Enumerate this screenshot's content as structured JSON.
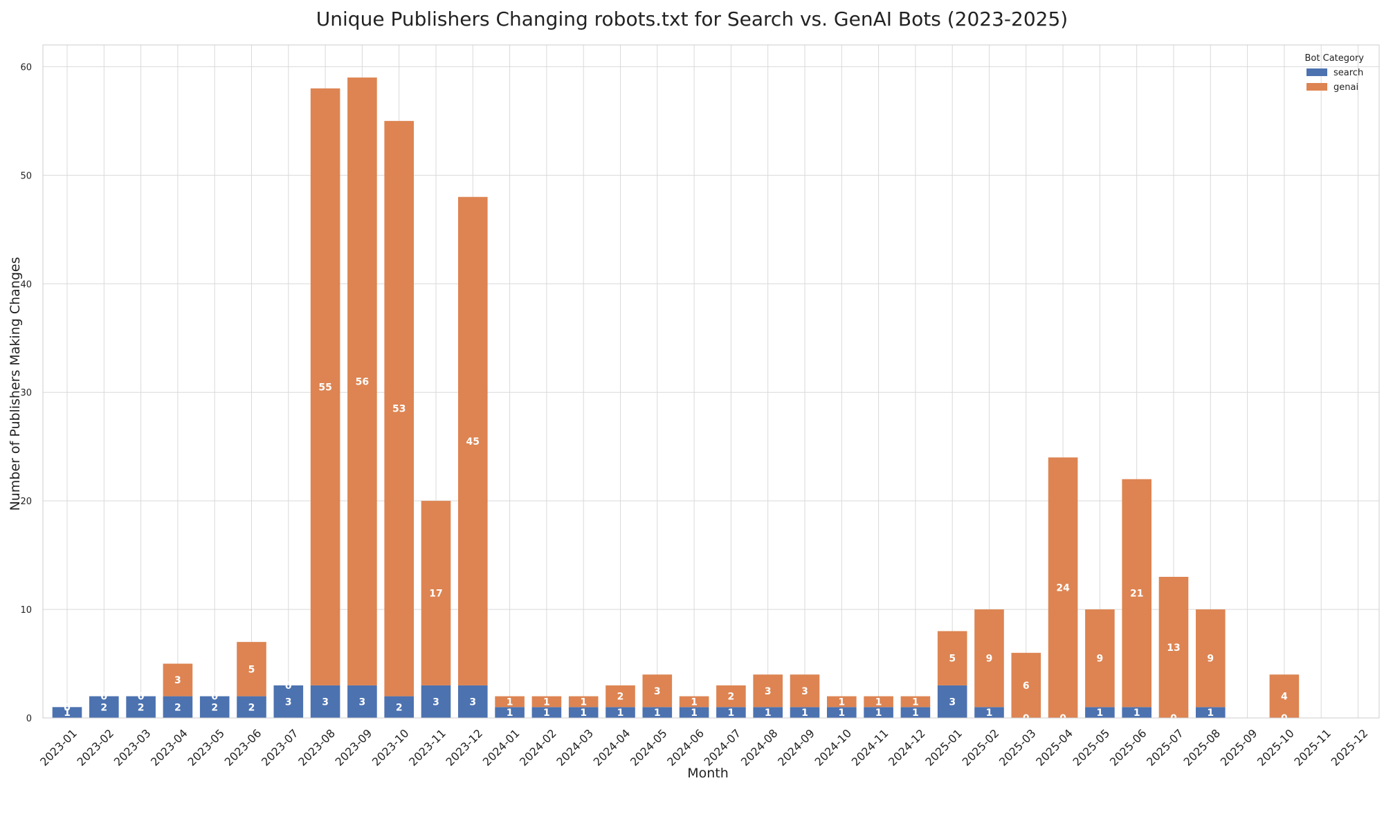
{
  "chart_data": {
    "type": "bar",
    "stacked": true,
    "title": "Unique Publishers Changing robots.txt for Search vs. GenAI Bots (2023-2025)",
    "xlabel": "Month",
    "ylabel": "Number of Publishers Making Changes",
    "ylim": [
      0,
      62
    ],
    "yticks": [
      0,
      10,
      20,
      30,
      40,
      50,
      60
    ],
    "grid": true,
    "legend": {
      "title": "Bot Category",
      "placement": "top-right"
    },
    "categories": [
      "2023-01",
      "2023-02",
      "2023-03",
      "2023-04",
      "2023-05",
      "2023-06",
      "2023-07",
      "2023-08",
      "2023-09",
      "2023-10",
      "2023-11",
      "2023-12",
      "2024-01",
      "2024-02",
      "2024-03",
      "2024-04",
      "2024-05",
      "2024-06",
      "2024-07",
      "2024-08",
      "2024-09",
      "2024-10",
      "2024-11",
      "2024-12",
      "2025-01",
      "2025-02",
      "2025-03",
      "2025-04",
      "2025-05",
      "2025-06",
      "2025-07",
      "2025-08",
      "2025-09",
      "2025-10",
      "2025-11",
      "2025-12"
    ],
    "series": [
      {
        "name": "search",
        "color": "#4c72b0",
        "values": [
          1,
          2,
          2,
          2,
          2,
          2,
          3,
          3,
          3,
          2,
          3,
          3,
          1,
          1,
          1,
          1,
          1,
          1,
          1,
          1,
          1,
          1,
          1,
          1,
          3,
          1,
          0,
          0,
          1,
          1,
          0,
          1,
          0,
          0,
          0,
          0
        ]
      },
      {
        "name": "genai",
        "color": "#dd8452",
        "values": [
          0,
          0,
          0,
          3,
          0,
          5,
          0,
          55,
          56,
          53,
          17,
          45,
          1,
          1,
          1,
          2,
          3,
          1,
          2,
          3,
          3,
          1,
          1,
          1,
          5,
          9,
          6,
          24,
          9,
          21,
          13,
          9,
          0,
          4,
          0,
          0
        ]
      }
    ],
    "labels": {
      "search": [
        "1",
        "2",
        "2",
        "2",
        "2",
        "2",
        "3",
        "3",
        "3",
        "2",
        "3",
        "3",
        "1",
        "1",
        "1",
        "1",
        "1",
        "1",
        "1",
        "1",
        "1",
        "1",
        "1",
        "1",
        "3",
        "1",
        "0",
        "0",
        "1",
        "1",
        "0",
        "1",
        "",
        "0",
        "",
        ""
      ],
      "genai": [
        "0",
        "0",
        "0",
        "3",
        "0",
        "5",
        "0",
        "55",
        "56",
        "53",
        "17",
        "45",
        "1",
        "1",
        "1",
        "2",
        "3",
        "1",
        "2",
        "3",
        "3",
        "1",
        "1",
        "1",
        "5",
        "9",
        "6",
        "24",
        "9",
        "21",
        "13",
        "9",
        "",
        "4",
        "",
        ""
      ]
    }
  }
}
